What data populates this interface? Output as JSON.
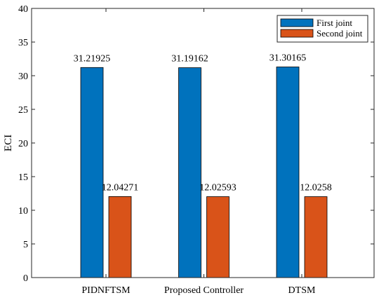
{
  "chart_data": {
    "type": "bar",
    "ylabel": "ECI",
    "ylim": [
      0,
      40
    ],
    "yticks": [
      0,
      5,
      10,
      15,
      20,
      25,
      30,
      35,
      40
    ],
    "categories": [
      "PIDNFTSM",
      "Proposed Controller",
      "DTSM"
    ],
    "series": [
      {
        "name": "First joint",
        "color": "#0072BD",
        "values": [
          31.21925,
          31.19162,
          31.30165
        ],
        "labels": [
          "31.21925",
          "31.19162",
          "31.30165"
        ]
      },
      {
        "name": "Second joint",
        "color": "#D95319",
        "values": [
          12.04271,
          12.02593,
          12.0258
        ],
        "labels": [
          "12.04271",
          "12.02593",
          "12.0258"
        ]
      }
    ],
    "legend_position": "top-right",
    "grid": false
  }
}
